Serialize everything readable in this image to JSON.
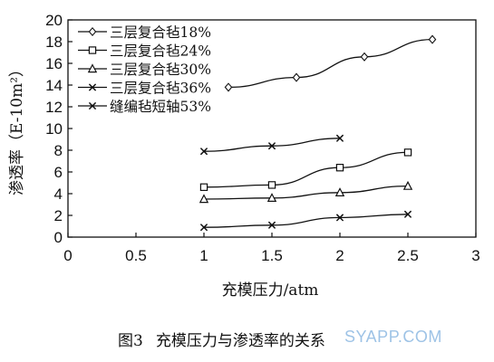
{
  "chart_data": {
    "type": "line",
    "xlabel": "充模压力/atm",
    "ylabel": "渗透率（E-10m²）",
    "xlim": [
      0,
      3
    ],
    "ylim": [
      0,
      20
    ],
    "x_ticks": [
      0,
      0.5,
      1,
      1.5,
      2,
      2.5,
      3
    ],
    "x_tick_labels": [
      "0",
      "0.5",
      "1",
      "1.5",
      "2",
      "2.5",
      "3"
    ],
    "y_ticks": [
      0,
      2,
      4,
      6,
      8,
      10,
      12,
      14,
      16,
      18,
      20
    ],
    "y_tick_labels": [
      "0",
      "2",
      "4",
      "6",
      "8",
      "10",
      "12",
      "14",
      "16",
      "18",
      "20"
    ],
    "grid": false,
    "legend_position": "top-left",
    "series": [
      {
        "name": "三层复合毡18%",
        "marker": "diamond",
        "x": [
          1.18,
          1.68,
          2.18,
          2.68
        ],
        "y": [
          13.8,
          14.7,
          16.6,
          18.2
        ]
      },
      {
        "name": "三层复合毡24%",
        "marker": "square",
        "x": [
          1,
          1.5,
          2,
          2.5
        ],
        "y": [
          4.6,
          4.8,
          6.4,
          7.8
        ]
      },
      {
        "name": "三层复合毡30%",
        "marker": "triangle",
        "x": [
          1,
          1.5,
          2,
          2.5
        ],
        "y": [
          3.5,
          3.6,
          4.1,
          4.7
        ]
      },
      {
        "name": "三层复合毡36%",
        "marker": "x",
        "x": [
          1,
          1.5,
          2,
          2.5
        ],
        "y": [
          0.9,
          1.1,
          1.8,
          2.1
        ]
      },
      {
        "name": "缝编毡短轴53%",
        "marker": "x",
        "x": [
          1,
          1.5,
          2
        ],
        "y": [
          7.9,
          8.4,
          9.1
        ]
      }
    ]
  },
  "caption": {
    "figure_number": "图3",
    "title": "充模压力与渗透率的关系"
  },
  "watermark": "SYAPP.COM"
}
